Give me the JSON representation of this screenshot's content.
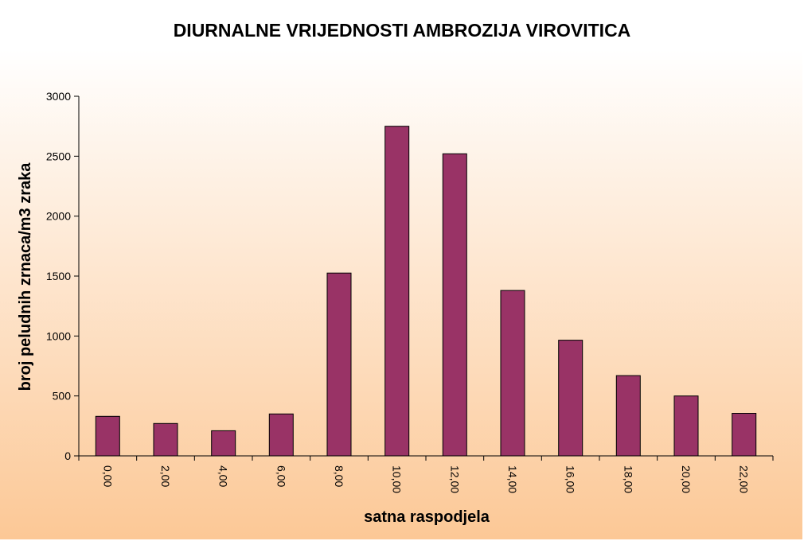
{
  "chart_data": {
    "type": "bar",
    "title": "DIURNALNE VRIJEDNOSTI AMBROZIJA VIROVITICA",
    "xlabel": "satna raspodjela",
    "ylabel": "broj peludnih zrnaca/m3 zraka",
    "categories": [
      "0,00",
      "2,00",
      "4,00",
      "6,00",
      "8,00",
      "10,00",
      "12,00",
      "14,00",
      "16,00",
      "18,00",
      "20,00",
      "22,00"
    ],
    "values": [
      330,
      270,
      210,
      350,
      1525,
      2750,
      2520,
      1380,
      965,
      670,
      500,
      355
    ],
    "ylim": [
      0,
      3000
    ],
    "yticks": [
      0,
      500,
      1000,
      1500,
      2000,
      2500,
      3000
    ],
    "grid": false,
    "bar_color": "#993366",
    "background_gradient": [
      "#ffffff",
      "#fcc896"
    ]
  }
}
